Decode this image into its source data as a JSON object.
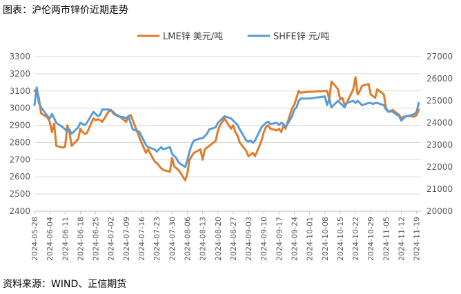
{
  "header": {
    "title": "图表：沪伦两市锌价近期走势"
  },
  "footer": {
    "source": "资料来源：WIND、正信期货"
  },
  "colors": {
    "lme": "#E07B2A",
    "shfe": "#5B9BD5",
    "grid": "#D9D9D9",
    "axis": "#BFBFBF"
  },
  "chart_data": {
    "type": "line",
    "title": "",
    "legend_position": "top",
    "grid": true,
    "x_range": [
      "2024-05-28",
      "2024-11-21"
    ],
    "x_tick_labels": [
      "2024-05-28",
      "2024-06-04",
      "2024-06-11",
      "2024-06-18",
      "2024-06-25",
      "2024-07-02",
      "2024-07-09",
      "2024-07-16",
      "2024-07-23",
      "2024-07-30",
      "2024-08-06",
      "2024-08-13",
      "2024-08-20",
      "2024-08-27",
      "2024-09-03",
      "2024-09-10",
      "2024-09-17",
      "2024-09-24",
      "2024-10-01",
      "2024-10-08",
      "2024-10-15",
      "2024-10-22",
      "2024-10-29",
      "2024-11-05",
      "2024-11-12",
      "2024-11-19"
    ],
    "y_left": {
      "min": 2400,
      "max": 3300,
      "step": 100,
      "ticks": [
        2400,
        2500,
        2600,
        2700,
        2800,
        2900,
        3000,
        3100,
        3200,
        3300
      ]
    },
    "y_right": {
      "min": 20000,
      "max": 27000,
      "step": 1000,
      "ticks": [
        20000,
        21000,
        22000,
        23000,
        24000,
        25000,
        26000,
        27000
      ]
    },
    "series": [
      {
        "name": "LME锌 美元/吨",
        "axis": "left",
        "color": "#E07B2A",
        "points": [
          [
            "2024-05-28",
            3100
          ],
          [
            "2024-05-29",
            3110
          ],
          [
            "2024-05-30",
            3060
          ],
          [
            "2024-05-31",
            2970
          ],
          [
            "2024-06-03",
            2945
          ],
          [
            "2024-06-04",
            2920
          ],
          [
            "2024-06-05",
            2860
          ],
          [
            "2024-06-06",
            2910
          ],
          [
            "2024-06-07",
            2780
          ],
          [
            "2024-06-10",
            2770
          ],
          [
            "2024-06-11",
            2775
          ],
          [
            "2024-06-12",
            2900
          ],
          [
            "2024-06-13",
            2860
          ],
          [
            "2024-06-14",
            2780
          ],
          [
            "2024-06-17",
            2820
          ],
          [
            "2024-06-18",
            2880
          ],
          [
            "2024-06-19",
            2860
          ],
          [
            "2024-06-20",
            2850
          ],
          [
            "2024-06-21",
            2855
          ],
          [
            "2024-06-24",
            2940
          ],
          [
            "2024-06-25",
            2930
          ],
          [
            "2024-06-26",
            2935
          ],
          [
            "2024-06-27",
            2930
          ],
          [
            "2024-06-28",
            2920
          ],
          [
            "2024-07-01",
            2980
          ],
          [
            "2024-07-02",
            2990
          ],
          [
            "2024-07-03",
            2970
          ],
          [
            "2024-07-04",
            2960
          ],
          [
            "2024-07-05",
            2960
          ],
          [
            "2024-07-08",
            2930
          ],
          [
            "2024-07-09",
            2920
          ],
          [
            "2024-07-10",
            2950
          ],
          [
            "2024-07-11",
            2960
          ],
          [
            "2024-07-12",
            2930
          ],
          [
            "2024-07-15",
            2830
          ],
          [
            "2024-07-16",
            2800
          ],
          [
            "2024-07-17",
            2770
          ],
          [
            "2024-07-18",
            2740
          ],
          [
            "2024-07-19",
            2760
          ],
          [
            "2024-07-22",
            2690
          ],
          [
            "2024-07-23",
            2680
          ],
          [
            "2024-07-24",
            2665
          ],
          [
            "2024-07-25",
            2650
          ],
          [
            "2024-07-26",
            2640
          ],
          [
            "2024-07-29",
            2630
          ],
          [
            "2024-07-30",
            2710
          ],
          [
            "2024-07-31",
            2660
          ],
          [
            "2024-08-01",
            2650
          ],
          [
            "2024-08-02",
            2640
          ],
          [
            "2024-08-05",
            2580
          ],
          [
            "2024-08-06",
            2620
          ],
          [
            "2024-08-07",
            2700
          ],
          [
            "2024-08-08",
            2720
          ],
          [
            "2024-08-09",
            2740
          ],
          [
            "2024-08-12",
            2760
          ],
          [
            "2024-08-13",
            2700
          ],
          [
            "2024-08-14",
            2760
          ],
          [
            "2024-08-15",
            2770
          ],
          [
            "2024-08-16",
            2780
          ],
          [
            "2024-08-19",
            2810
          ],
          [
            "2024-08-20",
            2870
          ],
          [
            "2024-08-21",
            2900
          ],
          [
            "2024-08-22",
            2920
          ],
          [
            "2024-08-23",
            2940
          ],
          [
            "2024-08-26",
            2880
          ],
          [
            "2024-08-27",
            2900
          ],
          [
            "2024-08-28",
            2860
          ],
          [
            "2024-08-29",
            2840
          ],
          [
            "2024-08-30",
            2800
          ],
          [
            "2024-09-02",
            2750
          ],
          [
            "2024-09-03",
            2720
          ],
          [
            "2024-09-04",
            2730
          ],
          [
            "2024-09-05",
            2740
          ],
          [
            "2024-09-06",
            2720
          ],
          [
            "2024-09-09",
            2810
          ],
          [
            "2024-09-10",
            2860
          ],
          [
            "2024-09-11",
            2890
          ],
          [
            "2024-09-12",
            2900
          ],
          [
            "2024-09-13",
            2880
          ],
          [
            "2024-09-16",
            2870
          ],
          [
            "2024-09-17",
            2880
          ],
          [
            "2024-09-18",
            2860
          ],
          [
            "2024-09-19",
            2900
          ],
          [
            "2024-09-20",
            2880
          ],
          [
            "2024-09-23",
            3000
          ],
          [
            "2024-09-24",
            3020
          ],
          [
            "2024-09-25",
            3060
          ],
          [
            "2024-09-26",
            3100
          ],
          [
            "2024-09-27",
            3090
          ],
          [
            "2024-10-01",
            3095
          ],
          [
            "2024-10-08",
            3100
          ],
          [
            "2024-10-09",
            3100
          ],
          [
            "2024-10-10",
            3050
          ],
          [
            "2024-10-11",
            3155
          ],
          [
            "2024-10-14",
            3110
          ],
          [
            "2024-10-15",
            3050
          ],
          [
            "2024-10-16",
            3060
          ],
          [
            "2024-10-17",
            3020
          ],
          [
            "2024-10-18",
            3030
          ],
          [
            "2024-10-21",
            3110
          ],
          [
            "2024-10-22",
            3180
          ],
          [
            "2024-10-23",
            3080
          ],
          [
            "2024-10-24",
            3100
          ],
          [
            "2024-10-25",
            3130
          ],
          [
            "2024-10-28",
            3140
          ],
          [
            "2024-10-29",
            3080
          ],
          [
            "2024-10-30",
            3070
          ],
          [
            "2024-10-31",
            3060
          ],
          [
            "2024-11-01",
            3110
          ],
          [
            "2024-11-04",
            3080
          ],
          [
            "2024-11-05",
            3000
          ],
          [
            "2024-11-06",
            2980
          ],
          [
            "2024-11-07",
            2980
          ],
          [
            "2024-11-08",
            2990
          ],
          [
            "2024-11-11",
            2960
          ],
          [
            "2024-11-12",
            2940
          ],
          [
            "2024-11-13",
            2950
          ],
          [
            "2024-11-14",
            2950
          ],
          [
            "2024-11-15",
            2955
          ],
          [
            "2024-11-18",
            2950
          ],
          [
            "2024-11-19",
            2960
          ],
          [
            "2024-11-20",
            2990
          ]
        ]
      },
      {
        "name": "SHFE锌 元/吨",
        "axis": "right",
        "color": "#5B9BD5",
        "points": [
          [
            "2024-05-28",
            24800
          ],
          [
            "2024-05-29",
            25600
          ],
          [
            "2024-05-30",
            24900
          ],
          [
            "2024-05-31",
            24700
          ],
          [
            "2024-06-03",
            24300
          ],
          [
            "2024-06-04",
            24200
          ],
          [
            "2024-06-05",
            24400
          ],
          [
            "2024-06-06",
            24200
          ],
          [
            "2024-06-07",
            24000
          ],
          [
            "2024-06-10",
            23800
          ],
          [
            "2024-06-11",
            23700
          ],
          [
            "2024-06-12",
            23600
          ],
          [
            "2024-06-13",
            23700
          ],
          [
            "2024-06-14",
            23500
          ],
          [
            "2024-06-17",
            23800
          ],
          [
            "2024-06-18",
            24000
          ],
          [
            "2024-06-19",
            23950
          ],
          [
            "2024-06-20",
            23900
          ],
          [
            "2024-06-21",
            24000
          ],
          [
            "2024-06-24",
            24500
          ],
          [
            "2024-06-25",
            24400
          ],
          [
            "2024-06-26",
            24300
          ],
          [
            "2024-06-27",
            24350
          ],
          [
            "2024-06-28",
            24600
          ],
          [
            "2024-07-01",
            24600
          ],
          [
            "2024-07-02",
            24550
          ],
          [
            "2024-07-03",
            24500
          ],
          [
            "2024-07-04",
            24400
          ],
          [
            "2024-07-05",
            24300
          ],
          [
            "2024-07-08",
            24250
          ],
          [
            "2024-07-09",
            24200
          ],
          [
            "2024-07-10",
            24300
          ],
          [
            "2024-07-11",
            24000
          ],
          [
            "2024-07-12",
            23700
          ],
          [
            "2024-07-15",
            23600
          ],
          [
            "2024-07-16",
            23400
          ],
          [
            "2024-07-17",
            23200
          ],
          [
            "2024-07-18",
            23000
          ],
          [
            "2024-07-19",
            22900
          ],
          [
            "2024-07-22",
            22800
          ],
          [
            "2024-07-23",
            22700
          ],
          [
            "2024-07-24",
            22800
          ],
          [
            "2024-07-25",
            22900
          ],
          [
            "2024-07-26",
            22800
          ],
          [
            "2024-07-29",
            22900
          ],
          [
            "2024-07-30",
            22600
          ],
          [
            "2024-07-31",
            22500
          ],
          [
            "2024-08-01",
            22400
          ],
          [
            "2024-08-02",
            22200
          ],
          [
            "2024-08-05",
            22000
          ],
          [
            "2024-08-06",
            22300
          ],
          [
            "2024-08-07",
            22700
          ],
          [
            "2024-08-08",
            23000
          ],
          [
            "2024-08-09",
            23200
          ],
          [
            "2024-08-12",
            23300
          ],
          [
            "2024-08-13",
            23300
          ],
          [
            "2024-08-14",
            23400
          ],
          [
            "2024-08-15",
            23500
          ],
          [
            "2024-08-16",
            23700
          ],
          [
            "2024-08-19",
            23800
          ],
          [
            "2024-08-20",
            24000
          ],
          [
            "2024-08-21",
            24100
          ],
          [
            "2024-08-22",
            24200
          ],
          [
            "2024-08-23",
            24300
          ],
          [
            "2024-08-26",
            24200
          ],
          [
            "2024-08-27",
            24100
          ],
          [
            "2024-08-28",
            24000
          ],
          [
            "2024-08-29",
            23900
          ],
          [
            "2024-08-30",
            23700
          ],
          [
            "2024-09-02",
            23200
          ],
          [
            "2024-09-03",
            23150
          ],
          [
            "2024-09-04",
            23200
          ],
          [
            "2024-09-05",
            23100
          ],
          [
            "2024-09-06",
            23200
          ],
          [
            "2024-09-09",
            23800
          ],
          [
            "2024-09-10",
            23900
          ],
          [
            "2024-09-11",
            24000
          ],
          [
            "2024-09-12",
            24050
          ],
          [
            "2024-09-13",
            23950
          ],
          [
            "2024-09-16",
            24000
          ],
          [
            "2024-09-17",
            23900
          ],
          [
            "2024-09-18",
            24000
          ],
          [
            "2024-09-19",
            23950
          ],
          [
            "2024-09-20",
            23800
          ],
          [
            "2024-09-23",
            24300
          ],
          [
            "2024-09-24",
            24600
          ],
          [
            "2024-09-25",
            24700
          ],
          [
            "2024-09-26",
            25000
          ],
          [
            "2024-09-27",
            25100
          ],
          [
            "2024-10-01",
            25100
          ],
          [
            "2024-10-08",
            25200
          ],
          [
            "2024-10-09",
            24800
          ],
          [
            "2024-10-10",
            25100
          ],
          [
            "2024-10-11",
            24700
          ],
          [
            "2024-10-14",
            25000
          ],
          [
            "2024-10-15",
            24900
          ],
          [
            "2024-10-16",
            24800
          ],
          [
            "2024-10-17",
            24700
          ],
          [
            "2024-10-18",
            24900
          ],
          [
            "2024-10-21",
            25000
          ],
          [
            "2024-10-22",
            24900
          ],
          [
            "2024-10-23",
            25000
          ],
          [
            "2024-10-24",
            24900
          ],
          [
            "2024-10-25",
            24800
          ],
          [
            "2024-10-28",
            24900
          ],
          [
            "2024-10-29",
            24900
          ],
          [
            "2024-10-30",
            24850
          ],
          [
            "2024-10-31",
            24900
          ],
          [
            "2024-11-01",
            24900
          ],
          [
            "2024-11-04",
            24800
          ],
          [
            "2024-11-05",
            24600
          ],
          [
            "2024-11-06",
            24500
          ],
          [
            "2024-11-07",
            24550
          ],
          [
            "2024-11-08",
            24500
          ],
          [
            "2024-11-11",
            24300
          ],
          [
            "2024-11-12",
            24100
          ],
          [
            "2024-11-13",
            24200
          ],
          [
            "2024-11-14",
            24300
          ],
          [
            "2024-11-15",
            24300
          ],
          [
            "2024-11-18",
            24400
          ],
          [
            "2024-11-19",
            24500
          ],
          [
            "2024-11-20",
            24900
          ]
        ]
      }
    ]
  }
}
